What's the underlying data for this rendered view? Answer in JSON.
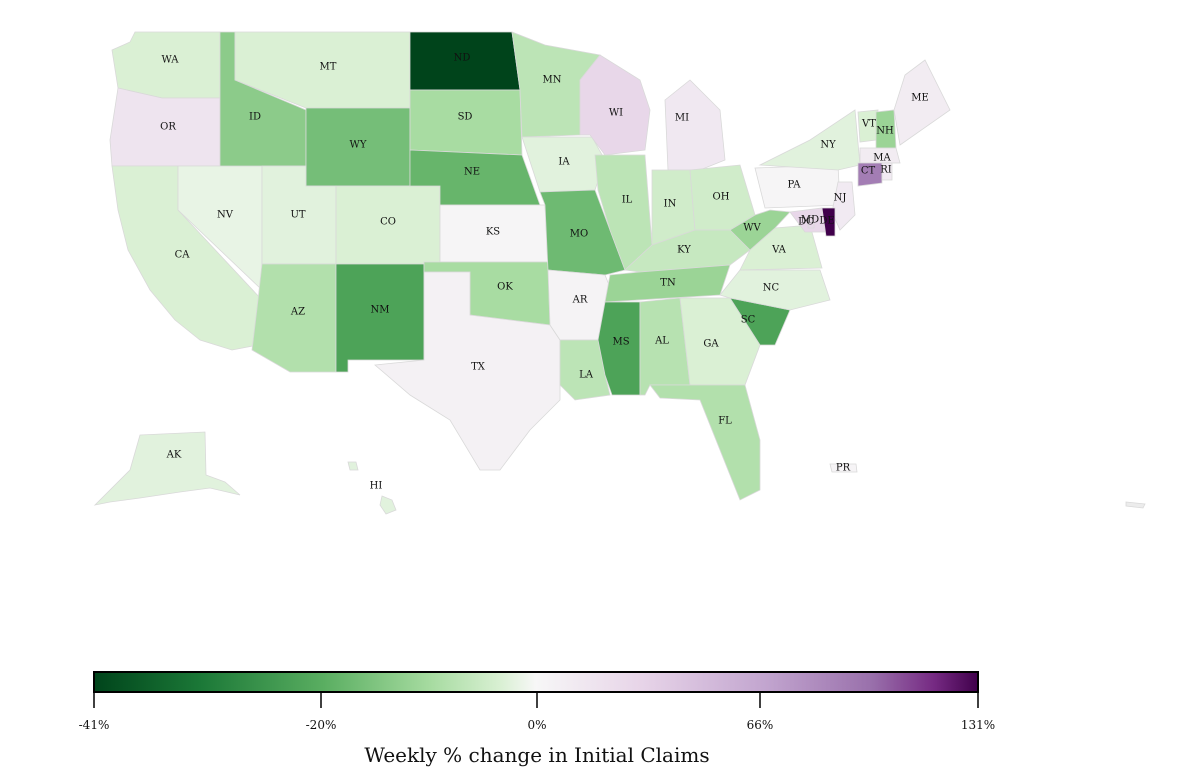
{
  "map": {
    "palette": {
      "purple_dark": "#40004b",
      "green_dark": "#00441b",
      "mid": "#f7f7f7"
    },
    "states": [
      {
        "code": "WA",
        "value": -8
      },
      {
        "code": "OR",
        "value": 18
      },
      {
        "code": "CA",
        "value": -8
      },
      {
        "code": "NV",
        "value": -4
      },
      {
        "code": "ID",
        "value": -22
      },
      {
        "code": "MT",
        "value": -8
      },
      {
        "code": "WY",
        "value": -25
      },
      {
        "code": "UT",
        "value": -6
      },
      {
        "code": "CO",
        "value": -8
      },
      {
        "code": "AZ",
        "value": -16
      },
      {
        "code": "NM",
        "value": -30
      },
      {
        "code": "ND",
        "value": -41
      },
      {
        "code": "SD",
        "value": -18
      },
      {
        "code": "NE",
        "value": -27
      },
      {
        "code": "KS",
        "value": 2
      },
      {
        "code": "OK",
        "value": -18
      },
      {
        "code": "TX",
        "value": 6
      },
      {
        "code": "MN",
        "value": -14
      },
      {
        "code": "IA",
        "value": -6
      },
      {
        "code": "MO",
        "value": -26
      },
      {
        "code": "AR",
        "value": 4
      },
      {
        "code": "LA",
        "value": -14
      },
      {
        "code": "WI",
        "value": 30
      },
      {
        "code": "IL",
        "value": -14
      },
      {
        "code": "MI",
        "value": 14
      },
      {
        "code": "IN",
        "value": -10
      },
      {
        "code": "OH",
        "value": -10
      },
      {
        "code": "KY",
        "value": -12
      },
      {
        "code": "TN",
        "value": -20
      },
      {
        "code": "MS",
        "value": -30
      },
      {
        "code": "AL",
        "value": -15
      },
      {
        "code": "GA",
        "value": -8
      },
      {
        "code": "FL",
        "value": -16
      },
      {
        "code": "SC",
        "value": -30
      },
      {
        "code": "NC",
        "value": -6
      },
      {
        "code": "VA",
        "value": -8
      },
      {
        "code": "WV",
        "value": -20
      },
      {
        "code": "PA",
        "value": 2
      },
      {
        "code": "NY",
        "value": -6
      },
      {
        "code": "VT",
        "value": -8
      },
      {
        "code": "NH",
        "value": -20
      },
      {
        "code": "ME",
        "value": 10
      },
      {
        "code": "MA",
        "value": 10
      },
      {
        "code": "CT",
        "value": 90
      },
      {
        "code": "RI",
        "value": 12
      },
      {
        "code": "NJ",
        "value": 12
      },
      {
        "code": "DE",
        "value": 131
      },
      {
        "code": "MD",
        "value": 30
      },
      {
        "code": "DC",
        "value": 30
      },
      {
        "code": "AK",
        "value": -6
      },
      {
        "code": "HI",
        "value": -6
      },
      {
        "code": "PR",
        "value": 3
      }
    ]
  },
  "colorbar": {
    "tick_labels": [
      "-41%",
      "-20%",
      "0%",
      "66%",
      "131%"
    ],
    "title": "Weekly % change in Initial Claims"
  }
}
